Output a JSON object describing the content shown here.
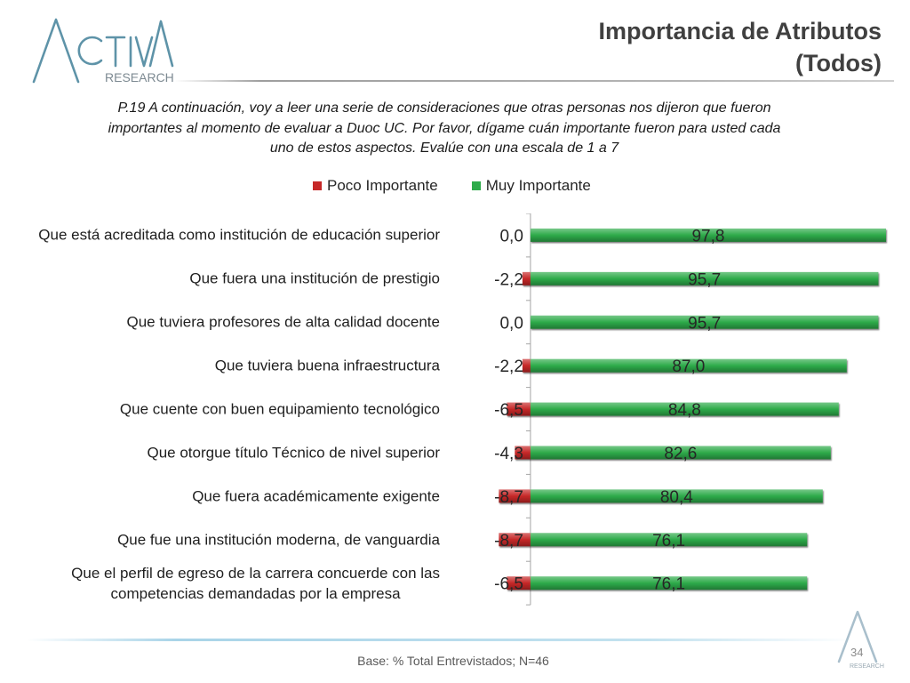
{
  "logo": {
    "name": "ACTIVA",
    "subtitle": "RESEARCH"
  },
  "header": {
    "title": "Importancia de Atributos",
    "subtitle": "(Todos)"
  },
  "question_lines": [
    "P.19 A continuación, voy a leer una serie de consideraciones que otras personas nos dijeron que fueron",
    "importantes al momento de evaluar a Duoc UC. Por favor, dígame cuán importante fueron para usted cada",
    "uno de estos aspectos. Evalúe con una escala de 1 a 7"
  ],
  "chart_data": {
    "type": "bar",
    "orientation": "horizontal",
    "stacking": "diverging",
    "categories": [
      "Que está acreditada como institución de educación superior",
      "Que fuera una institución de prestigio",
      "Que tuviera profesores de alta calidad docente",
      "Que tuviera buena infraestructura",
      "Que cuente con buen equipamiento tecnológico",
      "Que otorgue título Técnico de nivel superior",
      "Que fuera académicamente exigente",
      "Que fue una institución moderna, de vanguardia",
      "Que el perfil de egreso de la carrera concuerde con las\ncompetencias demandadas por la empresa"
    ],
    "series": [
      {
        "name": "Poco Importante",
        "color": "#c62828",
        "values": [
          0.0,
          -2.2,
          0.0,
          -2.2,
          -6.5,
          -4.3,
          -8.7,
          -8.7,
          -6.5
        ]
      },
      {
        "name": "Muy Importante",
        "color": "#2eab4a",
        "values": [
          97.8,
          95.7,
          95.7,
          87.0,
          84.8,
          82.6,
          80.4,
          76.1,
          76.1
        ]
      }
    ],
    "xlim": [
      -10,
      100
    ],
    "grid": false,
    "legend_position": "top"
  },
  "footer": {
    "base": "Base: % Total Entrevistados; N=46",
    "page_number": "34"
  },
  "watermark": {
    "subtitle": "RESEARCH"
  }
}
